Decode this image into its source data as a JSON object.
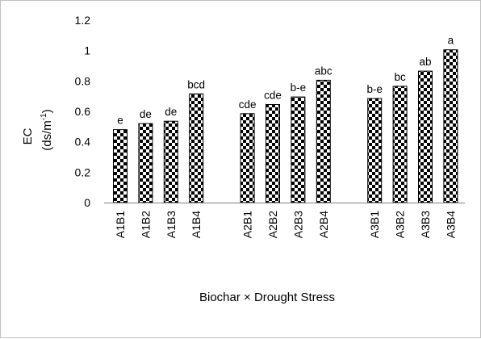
{
  "chart_data": {
    "type": "bar",
    "xlabel": "Biochar × Drought Stress",
    "ylabel": {
      "line1": "EC",
      "line2_prefix": "(ds/m",
      "line2_sup": "-1",
      "line2_suffix": ")"
    },
    "ylim": [
      0,
      1.2
    ],
    "yticks": [
      0,
      0.2,
      0.4,
      0.6,
      0.8,
      1,
      1.2
    ],
    "ytick_labels": [
      "0",
      "0.2",
      "0.4",
      "0.6",
      "0.8",
      "1",
      "1.2"
    ],
    "grid": false,
    "legend": "none",
    "groups": [
      [
        "A1B1",
        "A1B2",
        "A1B3",
        "A1B4"
      ],
      [
        "A2B1",
        "A2B2",
        "A2B3",
        "A2B4"
      ],
      [
        "A3B1",
        "A3B2",
        "A3B3",
        "A3B4"
      ]
    ],
    "categories": [
      "A1B1",
      "A1B2",
      "A1B3",
      "A1B4",
      "A2B1",
      "A2B2",
      "A2B3",
      "A2B4",
      "A3B1",
      "A3B2",
      "A3B3",
      "A3B4"
    ],
    "values": [
      0.48,
      0.52,
      0.535,
      0.715,
      0.585,
      0.645,
      0.695,
      0.805,
      0.685,
      0.765,
      0.865,
      1.005
    ],
    "labels": [
      "e",
      "de",
      "de",
      "bcd",
      "cde",
      "cde",
      "b-e",
      "abc",
      "b-e",
      "bc",
      "ab",
      "a"
    ],
    "pattern": "checkerboard",
    "colors": {
      "bar_fill": "#000000",
      "bar_alt": "#ffffff",
      "axis": "#808080",
      "border": "#bfbfbf"
    }
  }
}
